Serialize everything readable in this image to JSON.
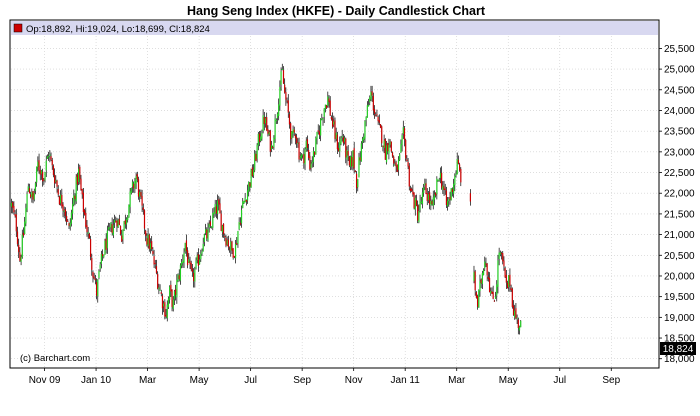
{
  "chart_data": {
    "type": "candlestick",
    "title": "Hang Seng Index (HKFE) - Daily Candlestick Chart",
    "legend_text": "Op:18,892, Hi:19,024, Lo:18,699, Cl:18,824",
    "last_value_label": "18,824",
    "watermark": "(c) Barchart.com",
    "grid": true,
    "ylim": [
      17800,
      25800
    ],
    "y_ticks": [
      18000,
      18500,
      19000,
      19500,
      20000,
      20500,
      21000,
      21500,
      22000,
      22500,
      23000,
      23500,
      24000,
      24500,
      25000,
      25500
    ],
    "y_tick_labels": [
      "18,000",
      "18,500",
      "19,000",
      "19,500",
      "20,000",
      "20,500",
      "21,000",
      "21,500",
      "22,000",
      "22,500",
      "23,000",
      "23,500",
      "24,000",
      "24,500",
      "25,000",
      "25,500"
    ],
    "x_tick_labels": [
      "Nov 09",
      "Jan 10",
      "Mar",
      "May",
      "Jul",
      "Sep",
      "Nov",
      "Jan 11",
      "Mar",
      "May",
      "Jul",
      "Sep"
    ],
    "x_tick_positions": [
      28,
      71,
      114,
      157,
      200,
      243,
      286,
      329,
      372,
      415,
      458,
      501
    ],
    "x_range": [
      0,
      540
    ],
    "colors": {
      "up": "#22cc22",
      "down": "#cc0000",
      "wick": "#000000",
      "legend_band": "#d8d8f0",
      "last_label_bg": "#000000"
    },
    "price_path": [
      [
        0,
        21700
      ],
      [
        4,
        21200
      ],
      [
        7,
        20400
      ],
      [
        10,
        21000
      ],
      [
        14,
        22200
      ],
      [
        18,
        21800
      ],
      [
        22,
        22700
      ],
      [
        27,
        22400
      ],
      [
        31,
        23000
      ],
      [
        34,
        22600
      ],
      [
        37,
        22300
      ],
      [
        40,
        21900
      ],
      [
        44,
        21700
      ],
      [
        48,
        21100
      ],
      [
        52,
        21900
      ],
      [
        56,
        22500
      ],
      [
        59,
        21800
      ],
      [
        62,
        21300
      ],
      [
        65,
        20800
      ],
      [
        68,
        20100
      ],
      [
        71,
        19600
      ],
      [
        74,
        20200
      ],
      [
        77,
        20600
      ],
      [
        80,
        20900
      ],
      [
        84,
        21200
      ],
      [
        88,
        21400
      ],
      [
        92,
        21000
      ],
      [
        96,
        21500
      ],
      [
        100,
        22000
      ],
      [
        104,
        22400
      ],
      [
        107,
        21900
      ],
      [
        110,
        21400
      ],
      [
        113,
        20900
      ],
      [
        116,
        20700
      ],
      [
        119,
        20300
      ],
      [
        122,
        19900
      ],
      [
        126,
        19400
      ],
      [
        129,
        19100
      ],
      [
        132,
        19600
      ],
      [
        135,
        19300
      ],
      [
        138,
        19800
      ],
      [
        142,
        20300
      ],
      [
        145,
        20800
      ],
      [
        148,
        20200
      ],
      [
        151,
        19900
      ],
      [
        154,
        20200
      ],
      [
        157,
        20500
      ],
      [
        160,
        20900
      ],
      [
        164,
        21000
      ],
      [
        168,
        21400
      ],
      [
        172,
        21700
      ],
      [
        175,
        21300
      ],
      [
        178,
        21000
      ],
      [
        181,
        20800
      ],
      [
        184,
        20600
      ],
      [
        187,
        20700
      ],
      [
        190,
        21300
      ],
      [
        193,
        21700
      ],
      [
        196,
        22000
      ],
      [
        199,
        22300
      ],
      [
        202,
        22600
      ],
      [
        205,
        23100
      ],
      [
        208,
        23500
      ],
      [
        211,
        23800
      ],
      [
        214,
        23400
      ],
      [
        217,
        23100
      ],
      [
        220,
        23700
      ],
      [
        222,
        24100
      ],
      [
        224,
        24600
      ],
      [
        226,
        24900
      ],
      [
        228,
        24400
      ],
      [
        231,
        23900
      ],
      [
        234,
        23300
      ],
      [
        237,
        23500
      ],
      [
        240,
        23000
      ],
      [
        243,
        22800
      ],
      [
        246,
        23200
      ],
      [
        249,
        22700
      ],
      [
        252,
        22900
      ],
      [
        255,
        23300
      ],
      [
        258,
        23700
      ],
      [
        261,
        24100
      ],
      [
        264,
        24300
      ],
      [
        267,
        23800
      ],
      [
        270,
        23400
      ],
      [
        273,
        23100
      ],
      [
        276,
        23400
      ],
      [
        279,
        23000
      ],
      [
        282,
        22600
      ],
      [
        285,
        22900
      ],
      [
        288,
        22300
      ],
      [
        291,
        22900
      ],
      [
        294,
        23500
      ],
      [
        297,
        24000
      ],
      [
        300,
        24400
      ],
      [
        303,
        24000
      ],
      [
        306,
        23600
      ],
      [
        309,
        23400
      ],
      [
        312,
        23000
      ],
      [
        315,
        23300
      ],
      [
        318,
        22900
      ],
      [
        321,
        22500
      ],
      [
        324,
        22800
      ],
      [
        327,
        23400
      ],
      [
        330,
        22800
      ],
      [
        333,
        22100
      ],
      [
        336,
        21800
      ],
      [
        339,
        21500
      ],
      [
        342,
        21800
      ],
      [
        345,
        22100
      ],
      [
        348,
        21900
      ],
      [
        351,
        21600
      ],
      [
        354,
        22000
      ],
      [
        357,
        22500
      ],
      [
        360,
        22200
      ],
      [
        363,
        21700
      ],
      [
        366,
        21900
      ],
      [
        369,
        22300
      ],
      [
        372,
        22700
      ],
      [
        375,
        22400
      ]
    ],
    "gaps": [
      {
        "from_x": 375,
        "to_x": 386
      }
    ],
    "price_path_after_gap": [
      [
        386,
        19900
      ],
      [
        389,
        19300
      ],
      [
        392,
        19900
      ],
      [
        395,
        20500
      ],
      [
        398,
        20000
      ],
      [
        401,
        19400
      ],
      [
        404,
        19600
      ],
      [
        407,
        20600
      ],
      [
        410,
        20300
      ],
      [
        413,
        19700
      ],
      [
        416,
        19900
      ],
      [
        419,
        19200
      ],
      [
        422,
        18900
      ],
      [
        425,
        18824
      ]
    ]
  }
}
